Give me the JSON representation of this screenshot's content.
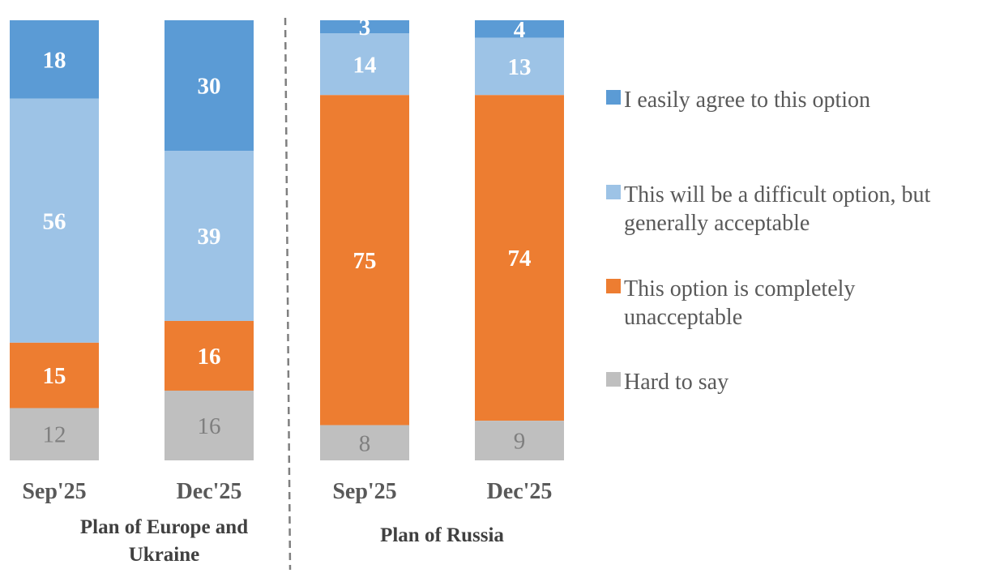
{
  "chart_data": {
    "type": "bar",
    "stacked": true,
    "percent_scale": [
      0,
      100
    ],
    "groups": [
      {
        "name": "Plan of Europe and\nUkraine",
        "categories": [
          "Sep'25",
          "Dec'25"
        ]
      },
      {
        "name": "Plan of Russia",
        "categories": [
          "Sep'25",
          "Dec'25"
        ]
      }
    ],
    "bars": [
      {
        "group": 0,
        "category": "Sep'25",
        "values": [
          18,
          56,
          15,
          12
        ]
      },
      {
        "group": 0,
        "category": "Dec'25",
        "values": [
          30,
          39,
          16,
          16
        ]
      },
      {
        "group": 1,
        "category": "Sep'25",
        "values": [
          3,
          14,
          75,
          8
        ]
      },
      {
        "group": 1,
        "category": "Dec'25",
        "values": [
          4,
          13,
          74,
          9
        ]
      }
    ],
    "series": [
      {
        "name": "I easily agree to this option",
        "color": "#5b9bd5",
        "label_style": "light"
      },
      {
        "name": "This will be a difficult option, but generally acceptable",
        "color": "#9dc3e6",
        "label_style": "light"
      },
      {
        "name": "This option is completely unacceptable",
        "color": "#ed7d31",
        "label_style": "light"
      },
      {
        "name": "Hard to say",
        "color": "#bfbfbf",
        "label_style": "gray"
      }
    ],
    "legend": {
      "placement": "right",
      "items": [
        [
          "I easily agree to this option"
        ],
        [
          "This will be a difficult option, but",
          "generally acceptable"
        ],
        [
          "This option is completely",
          "unacceptable"
        ],
        [
          "Hard to say"
        ]
      ]
    },
    "separator": "dashed vertical line between groups"
  }
}
